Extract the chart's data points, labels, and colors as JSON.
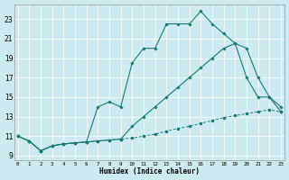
{
  "xlabel": "Humidex (Indice chaleur)",
  "background_color": "#cdeaf0",
  "line_color": "#1a7a6e",
  "grid_color": "#b0d8e0",
  "x_ticks": [
    0,
    1,
    2,
    3,
    4,
    5,
    6,
    7,
    8,
    9,
    10,
    11,
    12,
    13,
    14,
    15,
    16,
    17,
    18,
    19,
    20,
    21,
    22,
    23
  ],
  "y_ticks": [
    9,
    11,
    13,
    15,
    17,
    19,
    21,
    23
  ],
  "xlim": [
    -0.3,
    23.3
  ],
  "ylim": [
    8.5,
    24.5
  ],
  "line_bottom_x": [
    0,
    1,
    2,
    3,
    4,
    5,
    6,
    7,
    8,
    9,
    10,
    11,
    12,
    13,
    14,
    15,
    16,
    17,
    18,
    19,
    20,
    21,
    22,
    23
  ],
  "line_bottom_y": [
    11.0,
    10.5,
    9.5,
    10.0,
    10.2,
    10.3,
    10.4,
    10.5,
    10.6,
    10.7,
    10.8,
    11.0,
    11.2,
    11.5,
    11.8,
    12.0,
    12.3,
    12.6,
    12.9,
    13.1,
    13.3,
    13.5,
    13.7,
    13.5
  ],
  "line_mid_x": [
    0,
    1,
    2,
    3,
    4,
    5,
    6,
    7,
    8,
    9,
    10,
    11,
    12,
    13,
    14,
    15,
    16,
    17,
    18,
    19,
    20,
    21,
    22,
    23
  ],
  "line_mid_y": [
    11.0,
    10.5,
    9.5,
    10.0,
    10.2,
    10.3,
    10.4,
    10.5,
    10.6,
    10.7,
    12.0,
    13.0,
    14.0,
    15.0,
    16.0,
    17.0,
    18.0,
    19.0,
    20.0,
    20.5,
    20.0,
    17.0,
    15.0,
    13.5
  ],
  "line_top_x": [
    0,
    1,
    2,
    3,
    4,
    5,
    6,
    7,
    8,
    9,
    10,
    11,
    12,
    13,
    14,
    15,
    16,
    17,
    18,
    19,
    20,
    21,
    22,
    23
  ],
  "line_top_y": [
    11.0,
    10.5,
    9.5,
    10.0,
    10.2,
    10.3,
    10.4,
    14.0,
    14.5,
    14.0,
    18.5,
    20.0,
    20.0,
    22.5,
    22.5,
    22.5,
    23.8,
    22.5,
    21.5,
    20.5,
    17.0,
    15.0,
    15.0,
    14.0
  ]
}
